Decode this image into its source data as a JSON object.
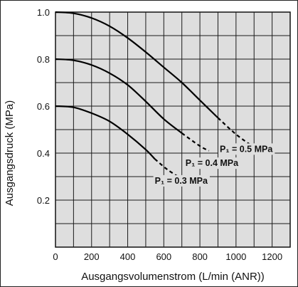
{
  "chart_data": {
    "type": "line",
    "xlabel": "Ausgangsvolumenstrom (L/min (ANR))",
    "ylabel": "Ausgangsdruck (MPa)",
    "xlim": [
      0,
      1300
    ],
    "ylim": [
      0,
      1.0
    ],
    "xticks": [
      "0",
      "200",
      "400",
      "600",
      "800",
      "1000",
      "1200"
    ],
    "yticks": [
      "0.2",
      "0.4",
      "0.6",
      "0.8",
      "1.0"
    ],
    "grid": true,
    "series": [
      {
        "name": "P₁ = 0.5 MPa",
        "solid": [
          [
            0,
            1.0
          ],
          [
            100,
            0.995
          ],
          [
            200,
            0.975
          ],
          [
            300,
            0.94
          ],
          [
            400,
            0.89
          ],
          [
            500,
            0.83
          ],
          [
            600,
            0.765
          ],
          [
            700,
            0.7
          ],
          [
            800,
            0.625
          ],
          [
            900,
            0.55
          ]
        ],
        "dashed": [
          [
            900,
            0.55
          ],
          [
            1000,
            0.48
          ],
          [
            1090,
            0.43
          ]
        ]
      },
      {
        "name": "P₁ = 0.4 MPa",
        "solid": [
          [
            0,
            0.8
          ],
          [
            100,
            0.795
          ],
          [
            200,
            0.775
          ],
          [
            300,
            0.74
          ],
          [
            400,
            0.69
          ],
          [
            500,
            0.62
          ],
          [
            600,
            0.545
          ],
          [
            700,
            0.485
          ]
        ],
        "dashed": [
          [
            700,
            0.485
          ],
          [
            800,
            0.43
          ],
          [
            850,
            0.41
          ]
        ]
      },
      {
        "name": "P₁ = 0.3 MPa",
        "solid": [
          [
            0,
            0.6
          ],
          [
            100,
            0.595
          ],
          [
            200,
            0.57
          ],
          [
            300,
            0.535
          ],
          [
            400,
            0.48
          ],
          [
            500,
            0.415
          ],
          [
            550,
            0.375
          ]
        ],
        "dashed": [
          [
            550,
            0.375
          ],
          [
            620,
            0.33
          ],
          [
            700,
            0.29
          ]
        ]
      }
    ]
  }
}
